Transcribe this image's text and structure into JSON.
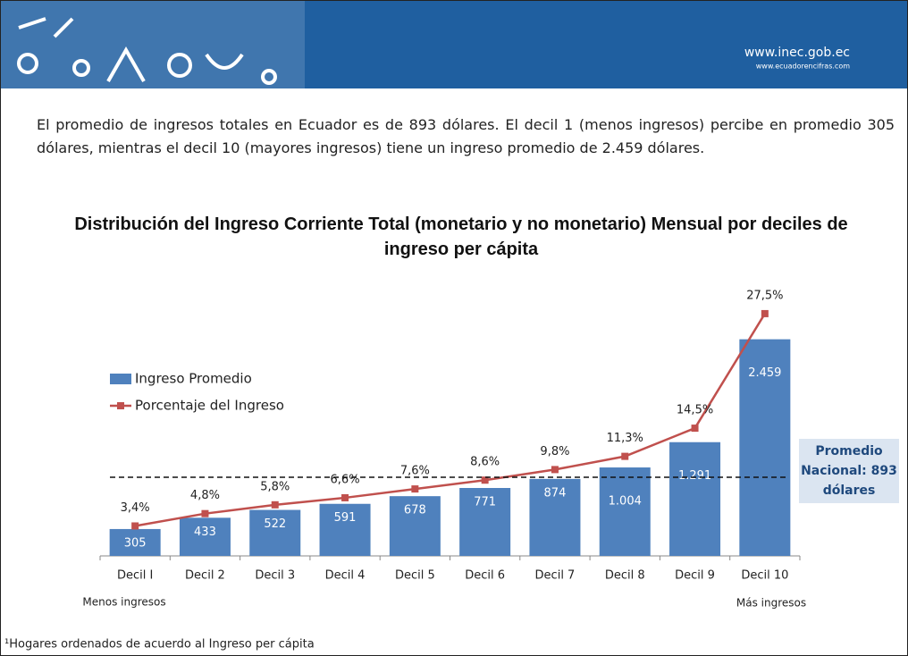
{
  "header": {
    "site": "www.inec.gob.ec",
    "subsite": "www.ecuadorencifras.com"
  },
  "intro": "El promedio de ingresos totales en Ecuador es de 893 dólares. El decil 1 (menos ingresos) percibe en promedio 305 dólares, mientras el decil 10 (mayores ingresos) tiene un ingreso promedio de 2.459 dólares.",
  "chart_data": {
    "type": "bar",
    "title": "Distribución del Ingreso Corriente Total (monetario y no monetario) Mensual por deciles de ingreso per cápita",
    "categories": [
      "Decil I",
      "Decil 2",
      "Decil 3",
      "Decil 4",
      "Decil 5",
      "Decil 6",
      "Decil 7",
      "Decil 8",
      "Decil 9",
      "Decil 10"
    ],
    "series": [
      {
        "name": "Ingreso Promedio",
        "type": "bar",
        "color": "#4f81bd",
        "values": [
          305,
          433,
          522,
          591,
          678,
          771,
          874,
          1004,
          1291,
          2459
        ],
        "value_labels": [
          "305",
          "433",
          "522",
          "591",
          "678",
          "771",
          "874",
          "1.004",
          "1.291",
          "2.459"
        ]
      },
      {
        "name": "Porcentaje del Ingreso",
        "type": "line",
        "axis": "y2",
        "color": "#c0504d",
        "values": [
          3.4,
          4.8,
          5.8,
          6.6,
          7.6,
          8.6,
          9.8,
          11.3,
          14.5,
          27.5
        ],
        "value_labels": [
          "3,4%",
          "4,8%",
          "5,8%",
          "6,6%",
          "7,6%",
          "8,6%",
          "9,8%",
          "11,3%",
          "14,5%",
          "27,5%"
        ]
      }
    ],
    "ylim": [
      0,
      2800
    ],
    "y2lim": [
      0,
      28
    ],
    "reference_line": {
      "value": 893,
      "label": "Promedio Nacional: 893 dólares"
    },
    "left_note": "Menos ingresos",
    "right_note": "Más ingresos",
    "legend": "left"
  },
  "footnote": "¹Hogares ordenados de acuerdo al Ingreso per cápita"
}
